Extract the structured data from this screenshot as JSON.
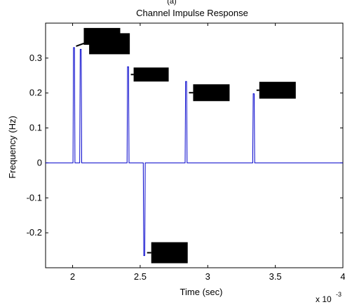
{
  "chart_data": {
    "type": "line",
    "title": "Channel Impulse Response",
    "title_fragment": "(a)",
    "xlabel": "Time (sec)",
    "ylabel": "Frequency (Hz)",
    "x_exponent_base": "x 10",
    "x_exponent_power": "-3",
    "xlim": [
      1.8,
      4.0
    ],
    "ylim": [
      -0.3,
      0.4
    ],
    "x_ticks": [
      2,
      2.5,
      3,
      3.5,
      4
    ],
    "x_tick_labels": [
      "2",
      "2.5",
      "3",
      "3.5",
      "4"
    ],
    "y_ticks": [
      -0.2,
      -0.1,
      0,
      0.1,
      0.2,
      0.3
    ],
    "y_tick_labels": [
      "-0.2",
      "-0.1",
      "0",
      "0.1",
      "0.2",
      "0.3"
    ],
    "grid": false,
    "legend": "none",
    "series": [
      {
        "color": "#0000cc",
        "impulses": [
          {
            "x": 2.01,
            "y": 0.33
          },
          {
            "x": 2.06,
            "y": 0.325
          },
          {
            "x": 2.41,
            "y": 0.275
          },
          {
            "x": 2.53,
            "y": -0.265
          },
          {
            "x": 2.84,
            "y": 0.233
          },
          {
            "x": 3.34,
            "y": 0.198
          }
        ]
      }
    ],
    "annotations": [
      {
        "text": "",
        "target": 0
      },
      {
        "text": "",
        "target": 1
      },
      {
        "text": "",
        "target": 2
      },
      {
        "text": "",
        "target": 3
      },
      {
        "text": "",
        "target": 4
      },
      {
        "text": "",
        "target": 5
      }
    ]
  }
}
